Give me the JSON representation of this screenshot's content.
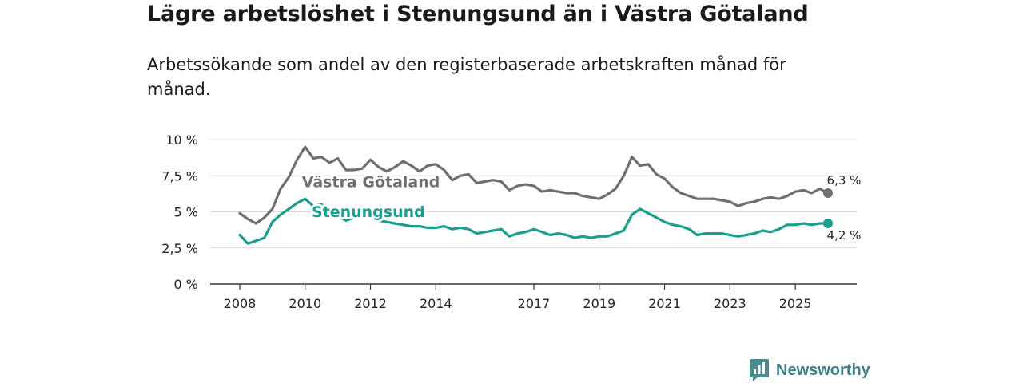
{
  "header": {
    "title": "Lägre arbetslöshet i Stenungsund än i Västra Götaland",
    "subtitle": "Arbetssökande som andel av den registerbaserade arbetskraften månad för månad."
  },
  "branding": {
    "name": "Newsworthy",
    "icon": "newsworthy-logo-icon",
    "color": "#3f7f86"
  },
  "chart_data": {
    "type": "line",
    "title": "Lägre arbetslöshet i Stenungsund än i Västra Götaland",
    "subtitle": "Arbetssökande som andel av den registerbaserade arbetskraften månad för månad.",
    "xlabel": "",
    "ylabel": "",
    "ylim": [
      0,
      10
    ],
    "xlim": [
      2008,
      2026.4
    ],
    "grid": true,
    "y_ticks": [
      {
        "value": 0,
        "label": "0 %"
      },
      {
        "value": 2.5,
        "label": "2,5 %"
      },
      {
        "value": 5,
        "label": "5 %"
      },
      {
        "value": 7.5,
        "label": "7,5 %"
      },
      {
        "value": 10,
        "label": "10 %"
      }
    ],
    "x_ticks": [
      {
        "value": 2008,
        "label": "2008"
      },
      {
        "value": 2010,
        "label": "2010"
      },
      {
        "value": 2012,
        "label": "2012"
      },
      {
        "value": 2014,
        "label": "2014"
      },
      {
        "value": 2017,
        "label": "2017"
      },
      {
        "value": 2019,
        "label": "2019"
      },
      {
        "value": 2021,
        "label": "2021"
      },
      {
        "value": 2023,
        "label": "2023"
      },
      {
        "value": 2025,
        "label": "2025"
      }
    ],
    "series": [
      {
        "name": "Västra Götaland",
        "color": "#6e6e73",
        "label_at": [
          2009.9,
          6.7
        ],
        "end_label": "6,3 %",
        "x": [
          2008.0,
          2008.25,
          2008.5,
          2008.75,
          2009.0,
          2009.25,
          2009.5,
          2009.75,
          2010.0,
          2010.25,
          2010.5,
          2010.75,
          2011.0,
          2011.25,
          2011.5,
          2011.75,
          2012.0,
          2012.25,
          2012.5,
          2012.75,
          2013.0,
          2013.25,
          2013.5,
          2013.75,
          2014.0,
          2014.25,
          2014.5,
          2014.75,
          2015.0,
          2015.25,
          2015.5,
          2015.75,
          2016.0,
          2016.25,
          2016.5,
          2016.75,
          2017.0,
          2017.25,
          2017.5,
          2017.75,
          2018.0,
          2018.25,
          2018.5,
          2018.75,
          2019.0,
          2019.25,
          2019.5,
          2019.75,
          2020.0,
          2020.25,
          2020.5,
          2020.75,
          2021.0,
          2021.25,
          2021.5,
          2021.75,
          2022.0,
          2022.25,
          2022.5,
          2022.75,
          2023.0,
          2023.25,
          2023.5,
          2023.75,
          2024.0,
          2024.25,
          2024.5,
          2024.75,
          2025.0,
          2025.25,
          2025.5,
          2025.75,
          2026.0
        ],
        "values": [
          4.9,
          4.5,
          4.2,
          4.6,
          5.2,
          6.6,
          7.4,
          8.6,
          9.5,
          8.7,
          8.8,
          8.4,
          8.7,
          7.9,
          7.9,
          8.0,
          8.6,
          8.1,
          7.8,
          8.1,
          8.5,
          8.2,
          7.8,
          8.2,
          8.3,
          7.9,
          7.2,
          7.5,
          7.6,
          7.0,
          7.1,
          7.2,
          7.1,
          6.5,
          6.8,
          6.9,
          6.8,
          6.4,
          6.5,
          6.4,
          6.3,
          6.3,
          6.1,
          6.0,
          5.9,
          6.2,
          6.6,
          7.5,
          8.8,
          8.2,
          8.3,
          7.6,
          7.3,
          6.7,
          6.3,
          6.1,
          5.9,
          5.9,
          5.9,
          5.8,
          5.7,
          5.4,
          5.6,
          5.7,
          5.9,
          6.0,
          5.9,
          6.1,
          6.4,
          6.5,
          6.3,
          6.6,
          6.3
        ]
      },
      {
        "name": "Stenungsund",
        "color": "#1a9e8f",
        "label_at": [
          2010.2,
          4.65
        ],
        "end_label": "4,2 %",
        "x": [
          2008.0,
          2008.25,
          2008.5,
          2008.75,
          2009.0,
          2009.25,
          2009.5,
          2009.75,
          2010.0,
          2010.25,
          2010.5,
          2010.75,
          2011.0,
          2011.25,
          2011.5,
          2011.75,
          2012.0,
          2012.25,
          2012.5,
          2012.75,
          2013.0,
          2013.25,
          2013.5,
          2013.75,
          2014.0,
          2014.25,
          2014.5,
          2014.75,
          2015.0,
          2015.25,
          2015.5,
          2015.75,
          2016.0,
          2016.25,
          2016.5,
          2016.75,
          2017.0,
          2017.25,
          2017.5,
          2017.75,
          2018.0,
          2018.25,
          2018.5,
          2018.75,
          2019.0,
          2019.25,
          2019.5,
          2019.75,
          2020.0,
          2020.25,
          2020.5,
          2020.75,
          2021.0,
          2021.25,
          2021.5,
          2021.75,
          2022.0,
          2022.25,
          2022.5,
          2022.75,
          2023.0,
          2023.25,
          2023.5,
          2023.75,
          2024.0,
          2024.25,
          2024.5,
          2024.75,
          2025.0,
          2025.25,
          2025.5,
          2025.75,
          2026.0
        ],
        "values": [
          3.4,
          2.8,
          3.0,
          3.2,
          4.3,
          4.8,
          5.2,
          5.6,
          5.9,
          5.4,
          5.5,
          5.2,
          4.7,
          4.4,
          4.6,
          4.7,
          4.6,
          4.4,
          4.3,
          4.2,
          4.1,
          4.0,
          4.0,
          3.9,
          3.9,
          4.0,
          3.8,
          3.9,
          3.8,
          3.5,
          3.6,
          3.7,
          3.8,
          3.3,
          3.5,
          3.6,
          3.8,
          3.6,
          3.4,
          3.5,
          3.4,
          3.2,
          3.3,
          3.2,
          3.3,
          3.3,
          3.5,
          3.7,
          4.8,
          5.2,
          4.9,
          4.6,
          4.3,
          4.1,
          4.0,
          3.8,
          3.4,
          3.5,
          3.5,
          3.5,
          3.4,
          3.3,
          3.4,
          3.5,
          3.7,
          3.6,
          3.8,
          4.1,
          4.1,
          4.2,
          4.1,
          4.2,
          4.2
        ]
      }
    ]
  }
}
